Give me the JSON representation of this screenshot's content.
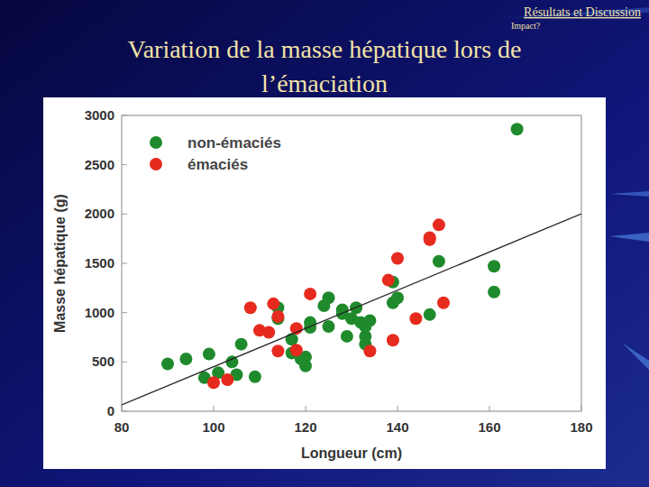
{
  "slide": {
    "section": "Résultats et Discussion",
    "subsection": "Impact?",
    "title": "Variation de la masse hépatique lors de l’émaciation"
  },
  "chart_data": {
    "type": "scatter",
    "x_label": "Longueur (cm)",
    "y_label": "Masse hépatique (g)",
    "xlim": [
      80,
      180
    ],
    "xticks": [
      80,
      100,
      120,
      140,
      160,
      180
    ],
    "ylim": [
      0,
      3000
    ],
    "yticks": [
      0,
      500,
      1000,
      1500,
      2000,
      2500,
      3000
    ],
    "grid": false,
    "legend": "upper left",
    "series": [
      {
        "name": "non-émaciés",
        "color": "#1f8a2c",
        "marker": "circle",
        "x": [
          90,
          94,
          99,
          98,
          101,
          104,
          105,
          106,
          109,
          114,
          114,
          117,
          117,
          119,
          120,
          120,
          121,
          121,
          124,
          125,
          125,
          128,
          128,
          129,
          130,
          131,
          132,
          133,
          133,
          133,
          134,
          139,
          139,
          140,
          147,
          149,
          161,
          161,
          166
        ],
        "values": [
          480,
          530,
          580,
          340,
          390,
          500,
          370,
          680,
          350,
          1050,
          940,
          730,
          590,
          530,
          550,
          460,
          900,
          850,
          1070,
          1150,
          860,
          1030,
          990,
          760,
          940,
          1050,
          900,
          860,
          760,
          680,
          920,
          1100,
          1310,
          1150,
          980,
          1520,
          1470,
          1210,
          2860
        ]
      },
      {
        "name": "émaciés",
        "color": "#e62a1e",
        "marker": "circle",
        "x": [
          100,
          103,
          108,
          110,
          112,
          113,
          114,
          114,
          118,
          118,
          121,
          134,
          138,
          139,
          140,
          144,
          147,
          147,
          149,
          150
        ],
        "values": [
          290,
          320,
          1050,
          820,
          800,
          1090,
          960,
          610,
          840,
          620,
          1190,
          610,
          1330,
          720,
          1550,
          940,
          1760,
          1740,
          1890,
          1100
        ]
      },
      {
        "type": "line",
        "color": "#222222",
        "line_style": "solid",
        "x": [
          80,
          180
        ],
        "values": [
          64,
          2003
        ]
      }
    ]
  }
}
